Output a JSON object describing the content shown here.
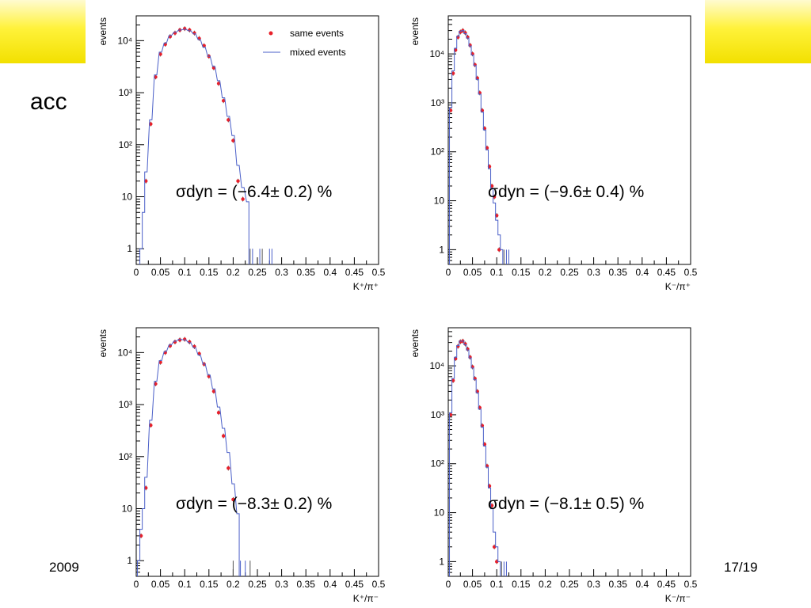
{
  "slide": {
    "partial_title": "acc",
    "footer_left": "2009",
    "page_number": "17/19"
  },
  "chart_data": [
    {
      "type": "line",
      "yscale": "log",
      "xlim": [
        0,
        0.5
      ],
      "ylim": [
        0.5,
        30000
      ],
      "xticks": [
        "0",
        "0.05",
        "0.1",
        "0.15",
        "0.2",
        "0.25",
        "0.3",
        "0.35",
        "0.4",
        "0.45",
        "0.5"
      ],
      "yticks": [
        {
          "v": 1,
          "label": "1"
        },
        {
          "v": 10,
          "label": "10"
        },
        {
          "v": 100,
          "label": "10²"
        },
        {
          "v": 1000,
          "label": "10³"
        },
        {
          "v": 10000,
          "label": "10⁴"
        }
      ],
      "ylabel": "events",
      "xlabel": "K⁺/π⁺",
      "annotation": "σdyn = (−6.4± 0.2) %",
      "legend_position": "top-right",
      "series": [
        {
          "name": "same events",
          "style": "points",
          "color": "#e8202a",
          "x": [
            0.02,
            0.03,
            0.04,
            0.05,
            0.06,
            0.07,
            0.08,
            0.09,
            0.1,
            0.11,
            0.12,
            0.13,
            0.14,
            0.15,
            0.16,
            0.17,
            0.18,
            0.19,
            0.2,
            0.21,
            0.22
          ],
          "y": [
            20,
            250,
            2000,
            5500,
            8500,
            12000,
            14000,
            16000,
            17000,
            16000,
            14000,
            11000,
            8000,
            5000,
            3000,
            1500,
            700,
            300,
            120,
            20,
            9
          ]
        },
        {
          "name": "mixed events",
          "style": "step",
          "color": "#4a5fc8",
          "x": [
            0.01,
            0.015,
            0.02,
            0.03,
            0.04,
            0.05,
            0.06,
            0.07,
            0.08,
            0.09,
            0.1,
            0.11,
            0.12,
            0.13,
            0.14,
            0.15,
            0.16,
            0.17,
            0.18,
            0.19,
            0.2,
            0.21,
            0.22,
            0.23
          ],
          "y": [
            1,
            5,
            30,
            300,
            2200,
            6000,
            9000,
            12500,
            14500,
            16000,
            16500,
            15500,
            13500,
            10500,
            7500,
            5000,
            3200,
            1700,
            800,
            350,
            150,
            40,
            15,
            8
          ]
        }
      ]
    },
    {
      "type": "line",
      "yscale": "log",
      "xlim": [
        0,
        0.5
      ],
      "ylim": [
        0.5,
        60000
      ],
      "xticks": [
        "0",
        "0.05",
        "0.1",
        "0.15",
        "0.2",
        "0.25",
        "0.3",
        "0.35",
        "0.4",
        "0.45",
        "0.5"
      ],
      "yticks": [
        {
          "v": 1,
          "label": "1"
        },
        {
          "v": 10,
          "label": "10"
        },
        {
          "v": 100,
          "label": "10²"
        },
        {
          "v": 1000,
          "label": "10³"
        },
        {
          "v": 10000,
          "label": "10⁴"
        }
      ],
      "ylabel": "events",
      "xlabel": "K⁻/π⁺",
      "annotation": "σdyn = (−9.6± 0.4) %",
      "series": [
        {
          "name": "same events",
          "style": "points",
          "color": "#e8202a",
          "x": [
            0.005,
            0.01,
            0.015,
            0.02,
            0.025,
            0.03,
            0.035,
            0.04,
            0.045,
            0.05,
            0.055,
            0.06,
            0.065,
            0.07,
            0.075,
            0.08,
            0.085,
            0.09,
            0.095,
            0.1,
            0.105
          ],
          "y": [
            700,
            4000,
            12000,
            22000,
            28000,
            30000,
            27000,
            22000,
            15000,
            10000,
            6000,
            3200,
            1600,
            700,
            300,
            120,
            50,
            20,
            12,
            5,
            1
          ]
        },
        {
          "name": "mixed events",
          "style": "step",
          "color": "#4a5fc8",
          "x": [
            0.005,
            0.01,
            0.015,
            0.02,
            0.025,
            0.03,
            0.035,
            0.04,
            0.045,
            0.05,
            0.055,
            0.06,
            0.065,
            0.07,
            0.075,
            0.08,
            0.085,
            0.09,
            0.095,
            0.1,
            0.105,
            0.11
          ],
          "y": [
            800,
            4500,
            13000,
            23000,
            29000,
            30000,
            26000,
            21000,
            14500,
            9500,
            5800,
            3000,
            1500,
            650,
            280,
            110,
            45,
            18,
            9,
            4,
            2,
            1
          ]
        }
      ]
    },
    {
      "type": "line",
      "yscale": "log",
      "xlim": [
        0,
        0.5
      ],
      "ylim": [
        0.5,
        30000
      ],
      "xticks": [
        "0",
        "0.05",
        "0.1",
        "0.15",
        "0.2",
        "0.25",
        "0.3",
        "0.35",
        "0.4",
        "0.45",
        "0.5"
      ],
      "yticks": [
        {
          "v": 1,
          "label": "1"
        },
        {
          "v": 10,
          "label": "10"
        },
        {
          "v": 100,
          "label": "10²"
        },
        {
          "v": 1000,
          "label": "10³"
        },
        {
          "v": 10000,
          "label": "10⁴"
        }
      ],
      "ylabel": "events",
      "xlabel": "K⁺/π⁻",
      "annotation": "σdyn = (−8.3± 0.2) %",
      "series": [
        {
          "name": "same events",
          "style": "points",
          "color": "#e8202a",
          "x": [
            0.01,
            0.02,
            0.03,
            0.04,
            0.05,
            0.06,
            0.07,
            0.08,
            0.09,
            0.1,
            0.11,
            0.12,
            0.13,
            0.14,
            0.15,
            0.16,
            0.17,
            0.18,
            0.19,
            0.2
          ],
          "y": [
            3,
            25,
            400,
            2500,
            6500,
            10000,
            13500,
            16000,
            17500,
            18000,
            16000,
            13000,
            9500,
            6000,
            3500,
            1800,
            700,
            250,
            60,
            15
          ]
        },
        {
          "name": "mixed events",
          "style": "step",
          "color": "#4a5fc8",
          "x": [
            0.005,
            0.01,
            0.015,
            0.02,
            0.03,
            0.04,
            0.05,
            0.06,
            0.07,
            0.08,
            0.09,
            0.1,
            0.11,
            0.12,
            0.13,
            0.14,
            0.15,
            0.16,
            0.17,
            0.18,
            0.19,
            0.2,
            0.21
          ],
          "y": [
            1,
            4,
            10,
            40,
            500,
            2800,
            7000,
            10500,
            14000,
            16500,
            18000,
            17500,
            15500,
            12500,
            9000,
            6000,
            3700,
            2000,
            900,
            350,
            120,
            30,
            8
          ]
        }
      ]
    },
    {
      "type": "line",
      "yscale": "log",
      "xlim": [
        0,
        0.5
      ],
      "ylim": [
        0.5,
        60000
      ],
      "xticks": [
        "0",
        "0.05",
        "0.1",
        "0.15",
        "0.2",
        "0.25",
        "0.3",
        "0.35",
        "0.4",
        "0.45",
        "0.5"
      ],
      "yticks": [
        {
          "v": 1,
          "label": "1"
        },
        {
          "v": 10,
          "label": "10"
        },
        {
          "v": 100,
          "label": "10²"
        },
        {
          "v": 1000,
          "label": "10³"
        },
        {
          "v": 10000,
          "label": "10⁴"
        }
      ],
      "ylabel": "events",
      "xlabel": "K⁻/π⁻",
      "annotation": "σdyn = (−8.1± 0.5) %",
      "series": [
        {
          "name": "same events",
          "style": "points",
          "color": "#e8202a",
          "x": [
            0.005,
            0.01,
            0.015,
            0.02,
            0.025,
            0.03,
            0.035,
            0.04,
            0.045,
            0.05,
            0.055,
            0.06,
            0.065,
            0.07,
            0.075,
            0.08,
            0.085,
            0.09,
            0.095,
            0.1
          ],
          "y": [
            1000,
            5000,
            14000,
            25000,
            31000,
            32000,
            28000,
            22000,
            15000,
            9500,
            5500,
            3000,
            1400,
            600,
            250,
            90,
            35,
            14,
            2,
            1
          ]
        },
        {
          "name": "mixed events",
          "style": "step",
          "color": "#4a5fc8",
          "x": [
            0.005,
            0.01,
            0.015,
            0.02,
            0.025,
            0.03,
            0.035,
            0.04,
            0.045,
            0.05,
            0.055,
            0.06,
            0.065,
            0.07,
            0.075,
            0.08,
            0.085,
            0.09,
            0.095,
            0.1,
            0.105
          ],
          "y": [
            1100,
            5500,
            15000,
            26000,
            32000,
            32000,
            27000,
            21000,
            14500,
            9000,
            5200,
            2800,
            1300,
            560,
            230,
            85,
            32,
            12,
            4,
            2,
            1
          ]
        }
      ]
    }
  ]
}
